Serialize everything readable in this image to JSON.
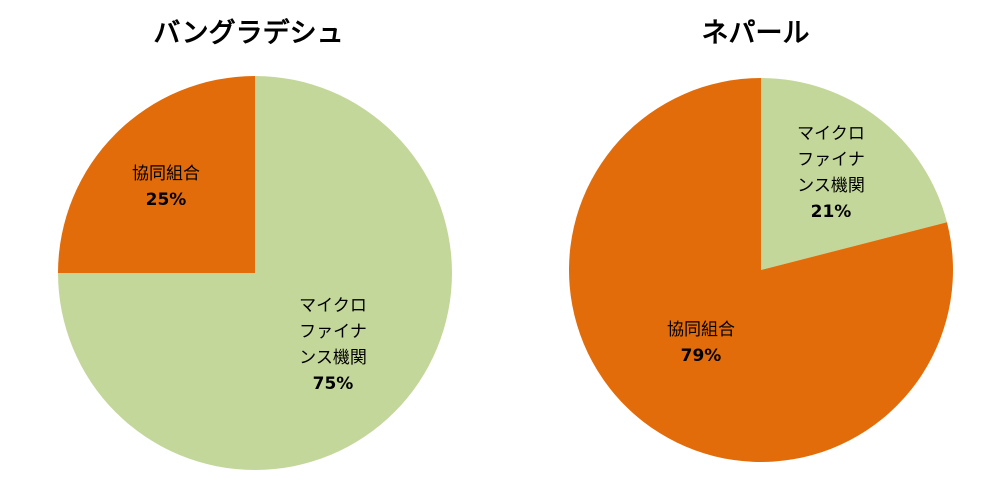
{
  "chart_data": [
    {
      "type": "pie",
      "title": "バングラデシュ",
      "slices": [
        {
          "label": "マイクロ\nファイナ\nンス機関",
          "value": 75,
          "value_label": "75%",
          "color": "#c4d79b"
        },
        {
          "label": "協同組合",
          "value": 25,
          "value_label": "25%",
          "color": "#e36c0a"
        }
      ]
    },
    {
      "type": "pie",
      "title": "ネパール",
      "slices": [
        {
          "label": "マイクロ\nファイナ\nンス機関",
          "value": 21,
          "value_label": "21%",
          "color": "#c4d79b"
        },
        {
          "label": "協同組合",
          "value": 79,
          "value_label": "79%",
          "color": "#e36c0a"
        }
      ]
    }
  ]
}
